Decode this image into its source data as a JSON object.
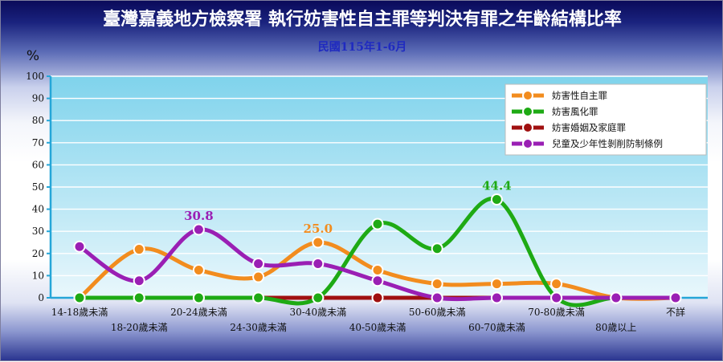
{
  "chart_data": {
    "type": "line",
    "title": "臺灣嘉義地方檢察署 執行妨害性自主罪等判決有罪之年齡結構比率",
    "subtitle": "民國115年1-6月",
    "ylabel": "%",
    "ylim": [
      0,
      100
    ],
    "yticks": [
      0,
      10,
      20,
      30,
      40,
      50,
      60,
      70,
      80,
      90,
      100
    ],
    "grid": true,
    "legend_position": "top-right",
    "categories": [
      "14-18歲未滿",
      "18-20歲未滿",
      "20-24歲未滿",
      "24-30歲未滿",
      "30-40歲未滿",
      "40-50歲未滿",
      "50-60歲未滿",
      "60-70歲未滿",
      "70-80歲未滿",
      "80歲以上",
      "不詳"
    ],
    "series": [
      {
        "name": "妨害性自主罪",
        "color": "#f28c1e",
        "values": [
          0,
          21.9,
          12.5,
          9.4,
          25.0,
          12.5,
          6.3,
          6.3,
          6.3,
          0,
          0
        ]
      },
      {
        "name": "妨害風化罪",
        "color": "#1eaa14",
        "values": [
          0,
          0,
          0,
          0,
          0,
          33.3,
          22.2,
          44.4,
          0,
          0,
          0
        ]
      },
      {
        "name": "妨害婚姻及家庭罪",
        "color": "#a01010",
        "values": [
          0,
          0,
          0,
          0,
          0,
          0,
          0,
          0,
          0,
          0,
          0
        ]
      },
      {
        "name": "兒童及少年性剝削防制條例",
        "color": "#9a1fb4",
        "values": [
          23.1,
          7.7,
          30.8,
          15.4,
          15.4,
          7.7,
          0,
          0,
          0,
          0,
          0
        ]
      }
    ],
    "annotations": [
      {
        "series": 3,
        "index": 2,
        "text": "30.8"
      },
      {
        "series": 0,
        "index": 4,
        "text": "25.0"
      },
      {
        "series": 1,
        "index": 7,
        "text": "44.4"
      }
    ]
  }
}
